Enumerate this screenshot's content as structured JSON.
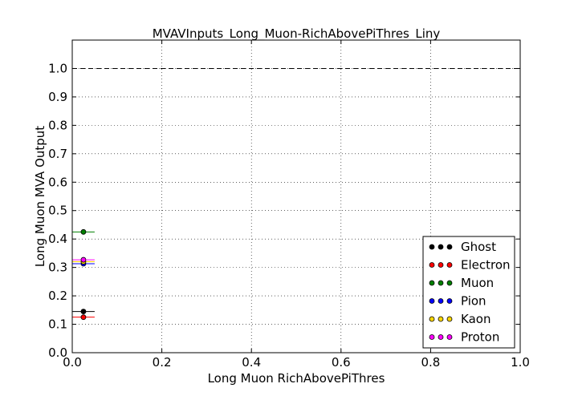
{
  "chart_data": {
    "type": "scatter",
    "title": "MVAVInputs_Long_Muon-RichAbovePiThres_Liny",
    "xlabel": "Long Muon RichAbovePiThres",
    "ylabel": "Long Muon MVA Output",
    "xlim": [
      0.0,
      1.0
    ],
    "ylim": [
      0.0,
      1.1
    ],
    "xticks": [
      "0.0",
      "0.2",
      "0.4",
      "0.6",
      "0.8",
      "1.0"
    ],
    "xtick_values": [
      0.0,
      0.2,
      0.4,
      0.6,
      0.8,
      1.0
    ],
    "yticks": [
      "0.0",
      "0.1",
      "0.2",
      "0.3",
      "0.4",
      "0.5",
      "0.6",
      "0.7",
      "0.8",
      "0.9",
      "1.0"
    ],
    "ytick_values": [
      0.0,
      0.1,
      0.2,
      0.3,
      0.4,
      0.5,
      0.6,
      0.7,
      0.8,
      0.9,
      1.0
    ],
    "grid": true,
    "reference_line": 1.0,
    "legend_position": "lower-right",
    "series": [
      {
        "name": "Ghost",
        "color": "#000000",
        "x": [
          0.025
        ],
        "y": [
          0.145
        ],
        "xerr": [
          0.025
        ]
      },
      {
        "name": "Electron",
        "color": "#ff0000",
        "x": [
          0.025
        ],
        "y": [
          0.125
        ],
        "xerr": [
          0.025
        ]
      },
      {
        "name": "Muon",
        "color": "#008000",
        "x": [
          0.025
        ],
        "y": [
          0.425
        ],
        "xerr": [
          0.025
        ]
      },
      {
        "name": "Pion",
        "color": "#0000ff",
        "x": [
          0.025
        ],
        "y": [
          0.313
        ],
        "xerr": [
          0.025
        ]
      },
      {
        "name": "Kaon",
        "color": "#ffd700",
        "x": [
          0.025
        ],
        "y": [
          0.32
        ],
        "xerr": [
          0.025
        ]
      },
      {
        "name": "Proton",
        "color": "#ff00ff",
        "x": [
          0.025
        ],
        "y": [
          0.327
        ],
        "xerr": [
          0.025
        ]
      }
    ]
  }
}
